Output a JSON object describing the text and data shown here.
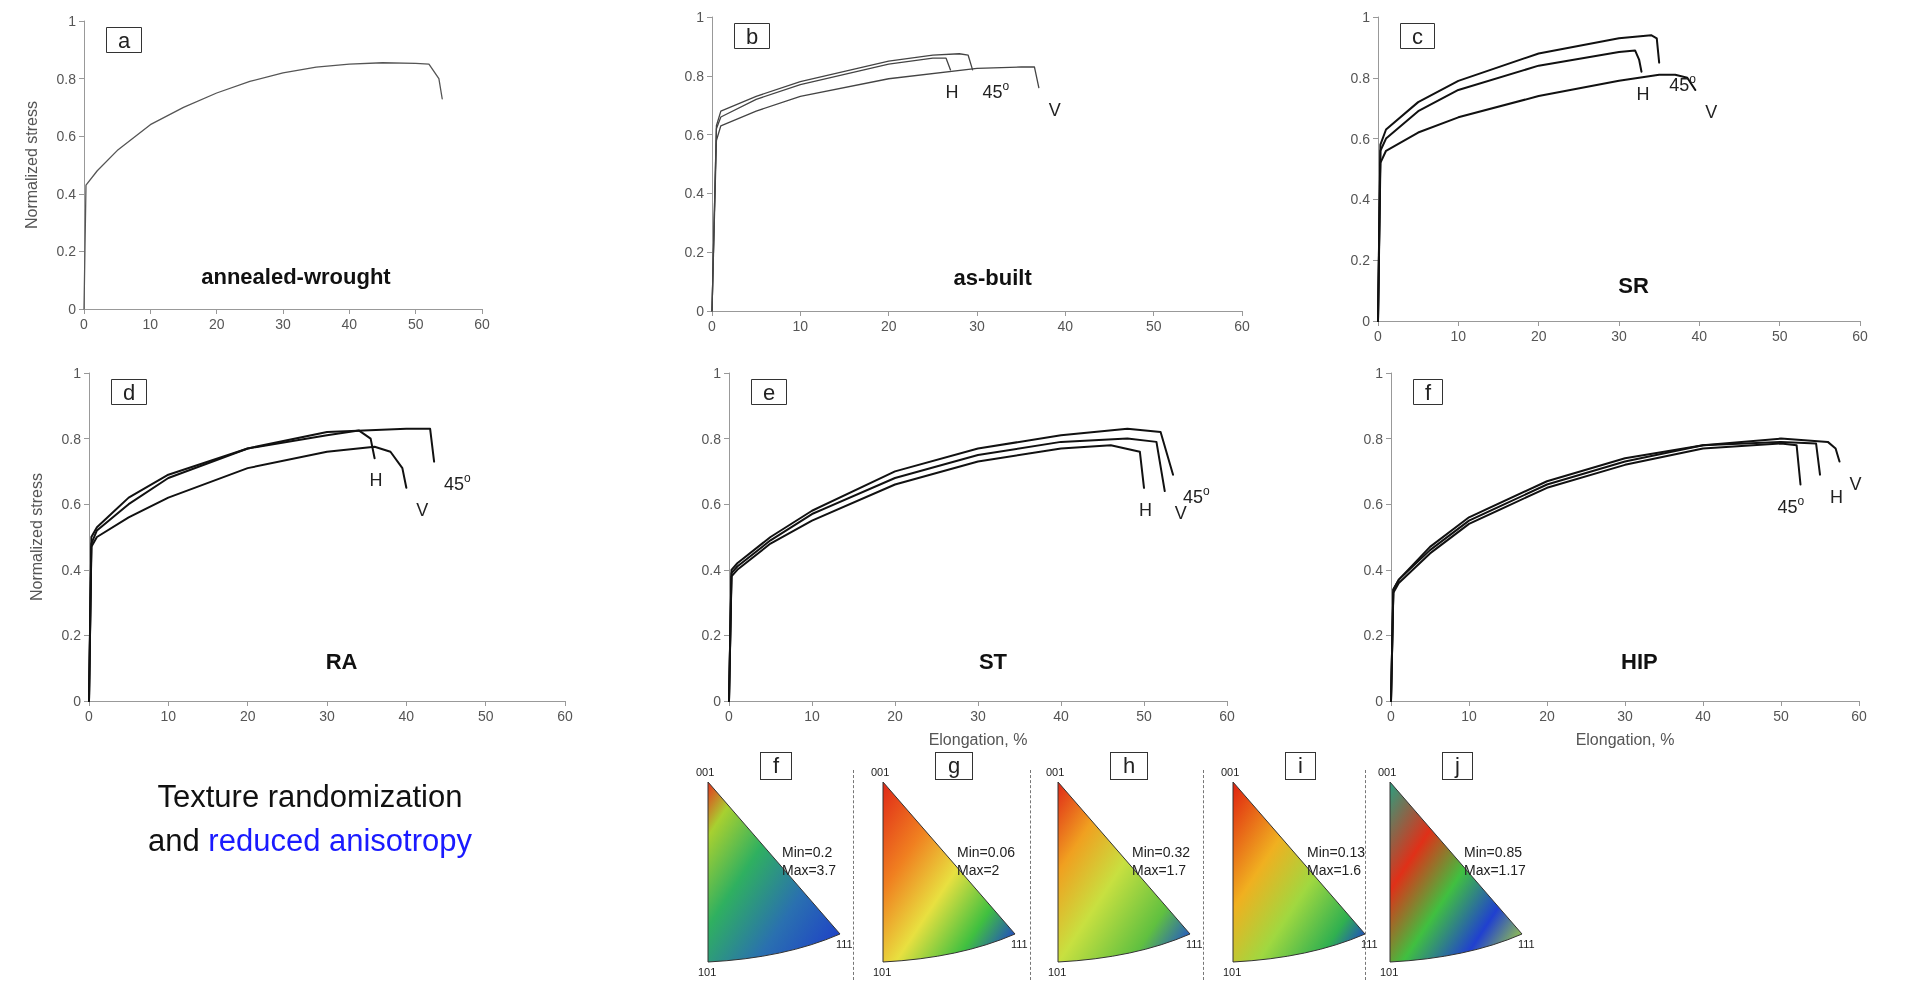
{
  "chart_data": [
    {
      "type": "line",
      "title": "a",
      "ylabel": "Normalized stress",
      "annotations": [
        "annealed-wrought"
      ],
      "xlim": [
        0,
        60
      ],
      "ylim": [
        0,
        1
      ],
      "xticks": [
        0,
        10,
        20,
        30,
        40,
        50,
        60
      ],
      "yticks": [
        0,
        0.2,
        0.4,
        0.6,
        0.8,
        1
      ],
      "marker": "none",
      "line_style": "solid",
      "series": [
        {
          "color": "#555555",
          "x": [
            0,
            0.3,
            2,
            5,
            10,
            15,
            20,
            25,
            30,
            35,
            40,
            45,
            50,
            52,
            53.5,
            54
          ],
          "values": [
            0,
            0.43,
            0.48,
            0.55,
            0.64,
            0.7,
            0.75,
            0.79,
            0.82,
            0.84,
            0.85,
            0.855,
            0.853,
            0.85,
            0.8,
            0.73
          ]
        }
      ]
    },
    {
      "type": "line",
      "title": "b",
      "annotations": [
        "as-built"
      ],
      "xlim": [
        0,
        60
      ],
      "ylim": [
        0,
        1
      ],
      "xticks": [
        0,
        10,
        20,
        30,
        40,
        50,
        60
      ],
      "yticks": [
        0,
        0.2,
        0.4,
        0.6,
        0.8,
        1
      ],
      "marker": "none",
      "line_style": "solid",
      "series": [
        {
          "name": "H",
          "color": "#444444",
          "x": [
            0,
            0.5,
            1,
            5,
            10,
            20,
            25,
            26.5,
            27
          ],
          "values": [
            0,
            0.62,
            0.66,
            0.72,
            0.77,
            0.84,
            0.86,
            0.86,
            0.82
          ]
        },
        {
          "name": "45$^{o}$",
          "color": "#444444",
          "x": [
            0,
            0.5,
            1,
            5,
            10,
            20,
            25,
            28,
            29,
            29.5
          ],
          "values": [
            0,
            0.63,
            0.68,
            0.73,
            0.78,
            0.85,
            0.87,
            0.875,
            0.87,
            0.82
          ]
        },
        {
          "name": "V",
          "color": "#444444",
          "x": [
            0,
            0.5,
            1,
            5,
            10,
            20,
            30,
            35,
            36.5,
            37
          ],
          "values": [
            0,
            0.58,
            0.63,
            0.68,
            0.73,
            0.79,
            0.825,
            0.83,
            0.83,
            0.76
          ]
        }
      ]
    },
    {
      "type": "line",
      "title": "c",
      "annotations": [
        "SR"
      ],
      "xlim": [
        0,
        60
      ],
      "ylim": [
        0,
        1
      ],
      "xticks": [
        0,
        10,
        20,
        30,
        40,
        50,
        60
      ],
      "yticks": [
        0,
        0.2,
        0.4,
        0.6,
        0.8,
        1
      ],
      "marker": "none",
      "line_style": "solid",
      "series": [
        {
          "name": "45$^{o}$",
          "color": "#111111",
          "x": [
            0,
            0.3,
            1,
            5,
            10,
            20,
            30,
            34,
            34.7,
            35
          ],
          "values": [
            0,
            0.58,
            0.63,
            0.72,
            0.79,
            0.88,
            0.93,
            0.94,
            0.93,
            0.85
          ]
        },
        {
          "name": "H",
          "color": "#111111",
          "x": [
            0,
            0.3,
            1,
            5,
            10,
            20,
            30,
            32,
            32.5,
            32.8
          ],
          "values": [
            0,
            0.56,
            0.6,
            0.69,
            0.76,
            0.84,
            0.885,
            0.89,
            0.86,
            0.82
          ]
        },
        {
          "name": "V",
          "color": "#111111",
          "x": [
            0,
            0.3,
            1,
            5,
            10,
            20,
            30,
            35,
            37,
            38.5,
            39.5
          ],
          "values": [
            0,
            0.52,
            0.56,
            0.62,
            0.67,
            0.74,
            0.79,
            0.81,
            0.81,
            0.8,
            0.76
          ]
        }
      ]
    },
    {
      "type": "line",
      "title": "d",
      "ylabel": "Normalized stress",
      "annotations": [
        "RA"
      ],
      "xlim": [
        0,
        60
      ],
      "ylim": [
        0,
        1
      ],
      "xticks": [
        0,
        10,
        20,
        30,
        40,
        50,
        60
      ],
      "yticks": [
        0,
        0.2,
        0.4,
        0.6,
        0.8,
        1
      ],
      "marker": "none",
      "line_style": "solid",
      "series": [
        {
          "name": "H",
          "color": "#111111",
          "x": [
            0,
            0.3,
            1,
            5,
            10,
            20,
            30,
            34,
            35.5,
            36
          ],
          "values": [
            0,
            0.5,
            0.53,
            0.62,
            0.69,
            0.77,
            0.81,
            0.825,
            0.8,
            0.74
          ]
        },
        {
          "name": "V",
          "color": "#111111",
          "x": [
            0,
            0.3,
            1,
            5,
            10,
            20,
            30,
            36,
            38,
            39.5,
            40
          ],
          "values": [
            0,
            0.47,
            0.5,
            0.56,
            0.62,
            0.71,
            0.76,
            0.775,
            0.76,
            0.71,
            0.65
          ]
        },
        {
          "name": "45$^{o}$",
          "color": "#111111",
          "x": [
            0,
            0.3,
            1,
            5,
            10,
            20,
            30,
            40,
            43,
            43.5
          ],
          "values": [
            0,
            0.48,
            0.52,
            0.6,
            0.68,
            0.77,
            0.82,
            0.83,
            0.83,
            0.73
          ]
        }
      ]
    },
    {
      "type": "line",
      "title": "e",
      "xlabel": "Elongation, %",
      "annotations": [
        "ST"
      ],
      "xlim": [
        0,
        60
      ],
      "ylim": [
        0,
        1
      ],
      "xticks": [
        0,
        10,
        20,
        30,
        40,
        50,
        60
      ],
      "yticks": [
        0,
        0.2,
        0.4,
        0.6,
        0.8,
        1
      ],
      "marker": "none",
      "line_style": "solid",
      "series": [
        {
          "name": "H",
          "color": "#111111",
          "x": [
            0,
            0.3,
            1,
            5,
            10,
            20,
            30,
            40,
            46,
            49.5,
            50
          ],
          "values": [
            0,
            0.38,
            0.4,
            0.48,
            0.55,
            0.66,
            0.73,
            0.77,
            0.78,
            0.76,
            0.65
          ]
        },
        {
          "name": "V",
          "color": "#111111",
          "x": [
            0,
            0.3,
            1,
            5,
            10,
            20,
            30,
            40,
            48,
            51.5,
            52.5
          ],
          "values": [
            0,
            0.39,
            0.41,
            0.49,
            0.57,
            0.68,
            0.75,
            0.79,
            0.8,
            0.79,
            0.64
          ]
        },
        {
          "name": "45$^{o}$",
          "color": "#111111",
          "x": [
            0,
            0.3,
            1,
            5,
            10,
            20,
            30,
            40,
            48,
            52,
            53.5
          ],
          "values": [
            0,
            0.4,
            0.42,
            0.5,
            0.58,
            0.7,
            0.77,
            0.81,
            0.83,
            0.82,
            0.69
          ]
        }
      ]
    },
    {
      "type": "line",
      "title": "f",
      "xlabel": "Elongation, %",
      "annotations": [
        "HIP"
      ],
      "xlim": [
        0,
        60
      ],
      "ylim": [
        0,
        1
      ],
      "xticks": [
        0,
        10,
        20,
        30,
        40,
        50,
        60
      ],
      "yticks": [
        0,
        0.2,
        0.4,
        0.6,
        0.8,
        1
      ],
      "marker": "none",
      "line_style": "solid",
      "series": [
        {
          "name": "45$^{o}$",
          "color": "#111111",
          "x": [
            0,
            0.3,
            1,
            5,
            10,
            20,
            30,
            40,
            50,
            52,
            52.5
          ],
          "values": [
            0,
            0.33,
            0.36,
            0.45,
            0.54,
            0.65,
            0.72,
            0.77,
            0.785,
            0.78,
            0.66
          ]
        },
        {
          "name": "H",
          "color": "#111111",
          "x": [
            0,
            0.3,
            1,
            5,
            10,
            20,
            30,
            40,
            50,
            54.5,
            55
          ],
          "values": [
            0,
            0.34,
            0.37,
            0.46,
            0.55,
            0.66,
            0.73,
            0.78,
            0.79,
            0.785,
            0.69
          ]
        },
        {
          "name": "V",
          "color": "#111111",
          "x": [
            0,
            0.3,
            1,
            5,
            10,
            20,
            30,
            40,
            50,
            56,
            57,
            57.5
          ],
          "values": [
            0,
            0.34,
            0.37,
            0.47,
            0.56,
            0.67,
            0.74,
            0.78,
            0.8,
            0.79,
            0.77,
            0.73
          ]
        }
      ]
    },
    {
      "type": "other",
      "annotations": [
        "Texture randomization",
        "and",
        "reduced anisotropy"
      ]
    },
    {
      "type": "other",
      "title": "f",
      "annotations": [
        "001",
        "101",
        "111",
        "Min=0.2",
        "Max=3.7"
      ]
    },
    {
      "type": "other",
      "title": "g",
      "annotations": [
        "001",
        "101",
        "111",
        "Min=0.06",
        "Max=2"
      ]
    },
    {
      "type": "other",
      "title": "h",
      "annotations": [
        "001",
        "101",
        "111",
        "Min=0.32",
        "Max=1.7"
      ]
    },
    {
      "type": "other",
      "title": "i",
      "annotations": [
        "001",
        "101",
        "111",
        "Min=0.13",
        "Max=1.6"
      ]
    },
    {
      "type": "other",
      "title": "j",
      "annotations": [
        "001",
        "101",
        "111",
        "Min=0.85",
        "Max=1.17"
      ]
    }
  ]
}
